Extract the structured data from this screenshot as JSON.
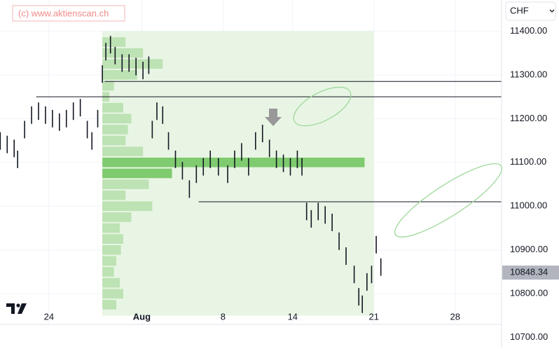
{
  "chart_data": {
    "type": "ohlc",
    "watermark": "(c) www.aktienscan.ch",
    "currency": "CHF",
    "last_price": 10848.34,
    "xlim": [
      19.78,
      63.0
    ],
    "xticks": [
      24,
      {
        "value": 32,
        "label": "Aug"
      },
      {
        "value": 39,
        "label": "8"
      },
      {
        "value": 45,
        "label": "14"
      },
      {
        "value": 52,
        "label": "21"
      },
      {
        "value": 59,
        "label": "28"
      }
    ],
    "ylim": [
      10730,
      11471
    ],
    "yticks": [
      {
        "value": 11400,
        "label": "11400.00"
      },
      {
        "value": 11300,
        "label": "11300.00"
      },
      {
        "value": 11200,
        "label": "11200.00"
      },
      {
        "value": 11100,
        "label": "11100.00"
      },
      {
        "value": 11000,
        "label": "11000.00"
      },
      {
        "value": 10900,
        "label": "10900.00"
      },
      {
        "value": 10800,
        "label": "10800.00"
      },
      {
        "value": 10700,
        "label": "10700.00"
      }
    ],
    "grid": true,
    "color": "#131722",
    "x": [
      19.8,
      20.4,
      21.0,
      21.3,
      21.9,
      22.5,
      23.1,
      23.7,
      24.3,
      24.9,
      25.5,
      26.1,
      26.7,
      27.3,
      27.7,
      28.2,
      28.6,
      28.9,
      29.3,
      29.7,
      30.3,
      30.9,
      31.5,
      32.1,
      32.6,
      32.9,
      33.3,
      33.8,
      34.3,
      34.9,
      35.5,
      36.1,
      36.7,
      37.3,
      37.9,
      38.6,
      39.4,
      40.0,
      40.6,
      41.2,
      41.8,
      42.4,
      43.0,
      43.6,
      44.2,
      44.8,
      45.4,
      45.8,
      46.2,
      46.6,
      47.2,
      47.8,
      48.4,
      49.0,
      49.6,
      50.3,
      50.7,
      51.0,
      51.4,
      51.8,
      52.2,
      52.6
    ],
    "high": [
      11169,
      11161,
      11152,
      11127,
      11195,
      11228,
      11237,
      11228,
      11220,
      11212,
      11220,
      11237,
      11245,
      11195,
      11169,
      11220,
      11322,
      11373,
      11389,
      11364,
      11347,
      11347,
      11339,
      11330,
      11342,
      11195,
      11237,
      11228,
      11169,
      11127,
      11101,
      11059,
      11093,
      11110,
      11127,
      11110,
      11093,
      11127,
      11144,
      11110,
      11169,
      11186,
      11152,
      11127,
      11118,
      11110,
      11127,
      11110,
      11008,
      10991,
      11008,
      11000,
      10983,
      10940,
      10906,
      10864,
      10813,
      10796,
      10847,
      10864,
      10932,
      10881
    ],
    "low": [
      11129,
      11121,
      11112,
      11087,
      11155,
      11188,
      11197,
      11188,
      11180,
      11172,
      11180,
      11197,
      11205,
      11155,
      11129,
      11180,
      11282,
      11333,
      11349,
      11324,
      11307,
      11307,
      11299,
      11290,
      11302,
      11155,
      11197,
      11188,
      11129,
      11087,
      11061,
      11019,
      11053,
      11070,
      11087,
      11070,
      11053,
      11087,
      11104,
      11070,
      11129,
      11146,
      11112,
      11087,
      11078,
      11070,
      11087,
      11070,
      10968,
      10951,
      10968,
      10960,
      10943,
      10900,
      10866,
      10824,
      10773,
      10756,
      10807,
      10824,
      10892,
      10841
    ],
    "range_box": {
      "x": [
        28.6,
        52.0
      ],
      "y": [
        10750,
        11400
      ],
      "color": "#e8f5e4"
    },
    "profile": {
      "start": 28.6,
      "color": "#b5deaa",
      "highlight_color": "#6cc35a",
      "prices": [
        11375,
        11350,
        11325,
        11300,
        11275,
        11250,
        11225,
        11200,
        11175,
        11150,
        11125,
        11100,
        11075,
        11050,
        11025,
        11000,
        10975,
        10950,
        10925,
        10900,
        10875,
        10850,
        10825,
        10800,
        10775
      ],
      "volumes": [
        2.0,
        3.5,
        5.2,
        3.0,
        1.0,
        0.6,
        1.8,
        2.5,
        2.2,
        2.0,
        3.5,
        22.6,
        6.0,
        4.0,
        2.0,
        4.3,
        2.5,
        1.5,
        1.8,
        1.6,
        1.2,
        1.0,
        1.5,
        1.8,
        1.2
      ],
      "highlight": [
        11100,
        11075
      ]
    },
    "levels": [
      {
        "value": 11285,
        "from": 28.8
      },
      {
        "value": 11250,
        "from": 22.9
      },
      {
        "value": 11010,
        "from": 36.9
      }
    ]
  }
}
